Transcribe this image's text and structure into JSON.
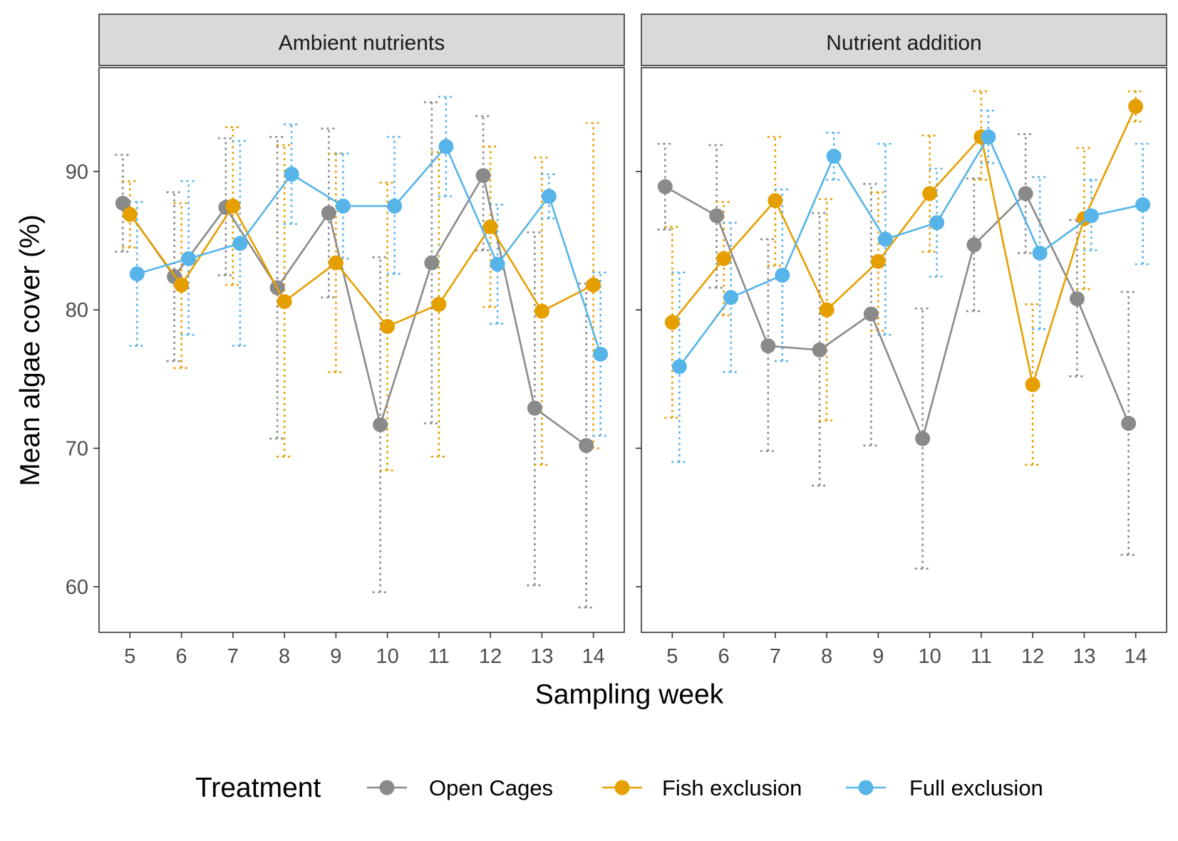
{
  "chart_data": {
    "type": "line",
    "xlabel": "Sampling week",
    "ylabel": "Mean algae cover (%)",
    "x": [
      5,
      6,
      7,
      8,
      9,
      10,
      11,
      12,
      13,
      14
    ],
    "x_ticks": [
      "5",
      "6",
      "7",
      "8",
      "9",
      "10",
      "11",
      "12",
      "13",
      "14"
    ],
    "ylim": [
      56.7,
      97.5
    ],
    "y_ticks": [
      "60",
      "70",
      "80",
      "90"
    ],
    "grid": false,
    "legend": {
      "title": "Treatment",
      "position": "bottom"
    },
    "error_bars": "dotted",
    "series_colors": {
      "Open Cages": "#8a8a8a",
      "Fish exclusion": "#e69f00",
      "Full exclusion": "#56b4e9"
    },
    "panels": [
      {
        "title": "Ambient nutrients",
        "series": [
          {
            "name": "Open Cages",
            "values": [
              87.7,
              82.4,
              87.4,
              81.6,
              87.0,
              71.7,
              83.4,
              89.7,
              72.9,
              70.2
            ],
            "lower": [
              84.2,
              76.3,
              82.5,
              70.7,
              80.9,
              59.6,
              71.8,
              84.3,
              60.1,
              58.5
            ],
            "upper": [
              91.2,
              88.5,
              92.4,
              92.5,
              93.1,
              83.8,
              95.0,
              94.0,
              85.6,
              81.9
            ]
          },
          {
            "name": "Fish exclusion",
            "values": [
              86.9,
              81.8,
              87.5,
              80.6,
              83.4,
              78.8,
              80.4,
              86.0,
              79.9,
              81.8
            ],
            "lower": [
              84.5,
              75.8,
              81.8,
              69.4,
              75.5,
              68.4,
              69.4,
              80.2,
              68.8,
              70.0
            ],
            "upper": [
              89.3,
              87.7,
              93.2,
              91.9,
              91.3,
              89.2,
              91.4,
              91.8,
              91.0,
              93.5
            ]
          },
          {
            "name": "Full exclusion",
            "values": [
              82.6,
              83.7,
              84.8,
              89.8,
              87.5,
              87.5,
              91.8,
              83.3,
              88.2,
              76.8
            ],
            "lower": [
              77.4,
              78.2,
              77.4,
              86.2,
              83.7,
              82.6,
              88.2,
              79.0,
              86.6,
              70.9
            ],
            "upper": [
              87.8,
              89.3,
              92.2,
              93.4,
              91.3,
              92.5,
              95.4,
              87.6,
              89.8,
              82.7
            ]
          }
        ]
      },
      {
        "title": "Nutrient addition",
        "series": [
          {
            "name": "Open Cages",
            "values": [
              88.9,
              86.8,
              77.4,
              77.1,
              79.7,
              70.7,
              84.7,
              88.4,
              80.8,
              71.8
            ],
            "lower": [
              85.8,
              81.6,
              69.8,
              67.3,
              70.2,
              61.3,
              79.9,
              84.1,
              75.2,
              62.3
            ],
            "upper": [
              92.0,
              91.9,
              85.1,
              87.0,
              89.1,
              80.1,
              89.5,
              92.7,
              86.5,
              81.3
            ]
          },
          {
            "name": "Fish exclusion",
            "values": [
              79.1,
              83.7,
              87.9,
              80.0,
              83.5,
              88.4,
              92.5,
              74.6,
              86.6,
              94.7
            ],
            "lower": [
              72.2,
              79.6,
              83.2,
              72.0,
              78.5,
              84.2,
              89.4,
              68.8,
              81.5,
              93.6
            ],
            "upper": [
              86.0,
              87.8,
              92.5,
              88.0,
              88.5,
              92.6,
              95.8,
              80.4,
              91.7,
              95.8
            ]
          },
          {
            "name": "Full exclusion",
            "values": [
              75.9,
              80.9,
              82.5,
              91.1,
              85.1,
              86.3,
              92.5,
              84.1,
              86.8,
              87.6
            ],
            "lower": [
              69.0,
              75.5,
              76.3,
              89.4,
              78.2,
              82.4,
              90.6,
              78.6,
              84.3,
              83.3
            ],
            "upper": [
              82.7,
              86.3,
              88.7,
              92.8,
              92.0,
              90.2,
              94.4,
              89.6,
              89.4,
              92.0
            ]
          }
        ]
      }
    ]
  }
}
